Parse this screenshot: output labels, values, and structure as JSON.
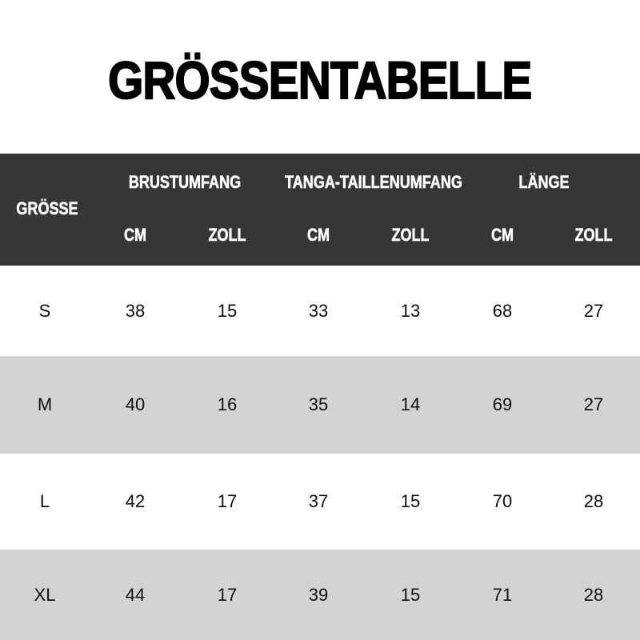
{
  "title": "GRÖSSENTABELLE",
  "header": {
    "size_label": "GRÖSSE",
    "groups": [
      "BRUSTUMFANG",
      "TANGA-TAILLENUMFANG",
      "LÄNGE"
    ],
    "units": [
      "CM",
      "ZOLL",
      "CM",
      "ZOLL",
      "CM",
      "ZOLL"
    ]
  },
  "rows": [
    [
      "S",
      "38",
      "15",
      "33",
      "13",
      "68",
      "27"
    ],
    [
      "M",
      "40",
      "16",
      "35",
      "14",
      "69",
      "27"
    ],
    [
      "L",
      "42",
      "17",
      "37",
      "15",
      "70",
      "28"
    ],
    [
      "XL",
      "44",
      "17",
      "39",
      "15",
      "71",
      "28"
    ]
  ],
  "colors": {
    "header_bg": "#383536",
    "alt_row": "#d3d1d1"
  }
}
